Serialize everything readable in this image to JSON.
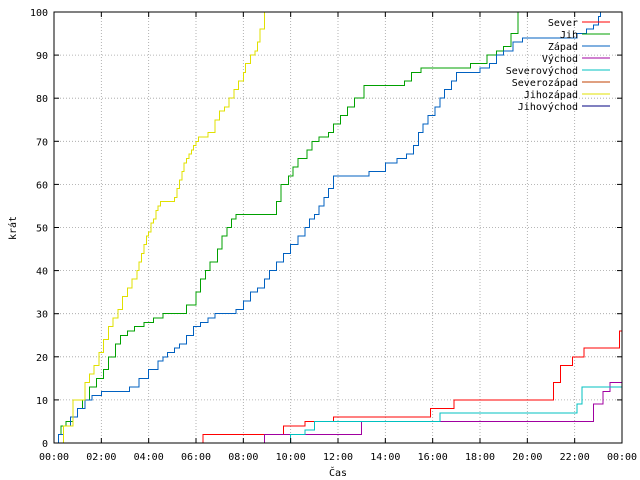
{
  "chart_data": {
    "type": "line",
    "title": "",
    "xlabel": "Čas",
    "ylabel": "krát",
    "xlim": [
      0,
      24
    ],
    "ylim": [
      0,
      100
    ],
    "grid": true,
    "legend_position": "top-right",
    "x_ticks": [
      {
        "value": 0,
        "label": "00:00"
      },
      {
        "value": 2,
        "label": "02:00"
      },
      {
        "value": 4,
        "label": "04:00"
      },
      {
        "value": 6,
        "label": "06:00"
      },
      {
        "value": 8,
        "label": "08:00"
      },
      {
        "value": 10,
        "label": "10:00"
      },
      {
        "value": 12,
        "label": "12:00"
      },
      {
        "value": 14,
        "label": "14:00"
      },
      {
        "value": 16,
        "label": "16:00"
      },
      {
        "value": 18,
        "label": "18:00"
      },
      {
        "value": 20,
        "label": "20:00"
      },
      {
        "value": 22,
        "label": "22:00"
      },
      {
        "value": 24,
        "label": "00:00"
      }
    ],
    "y_ticks": [
      0,
      10,
      20,
      30,
      40,
      50,
      60,
      70,
      80,
      90,
      100
    ],
    "series": [
      {
        "name": "Sever",
        "color": "#ff0000",
        "step": true,
        "x": [
          0,
          6.3,
          9.7,
          10.6,
          11.8,
          15.9,
          16.9,
          21.1,
          21.4,
          21.9,
          22.4,
          23.9
        ],
        "y": [
          0,
          2,
          4,
          5,
          6,
          8,
          10,
          14,
          18,
          20,
          22,
          26
        ]
      },
      {
        "name": "Jih",
        "color": "#00a000",
        "step": true,
        "x": [
          0,
          0.2,
          0.3,
          0.5,
          0.8,
          1.0,
          1.2,
          1.5,
          1.8,
          2.1,
          2.3,
          2.6,
          2.8,
          3.1,
          3.4,
          3.8,
          4.2,
          4.6,
          5.0,
          5.6,
          6.0,
          6.2,
          6.4,
          6.6,
          6.9,
          7.1,
          7.3,
          7.5,
          7.7,
          8.0,
          8.3,
          9.4,
          9.6,
          9.9,
          10.1,
          10.3,
          10.7,
          10.9,
          11.2,
          11.6,
          11.8,
          12.1,
          12.4,
          12.7,
          13.1,
          14.4,
          14.8,
          15.1,
          15.5,
          16.0,
          16.8,
          17.2,
          17.6,
          18.3,
          18.7,
          19.0,
          19.3,
          19.6
        ],
        "y": [
          0,
          2,
          4,
          5,
          6,
          8,
          10,
          13,
          15,
          17,
          20,
          23,
          25,
          26,
          27,
          28,
          29,
          30,
          30,
          32,
          35,
          38,
          40,
          42,
          45,
          48,
          50,
          52,
          53,
          53,
          53,
          56,
          60,
          62,
          64,
          66,
          68,
          70,
          71,
          72,
          74,
          76,
          78,
          80,
          83,
          83,
          84,
          86,
          87,
          87,
          87,
          87,
          88,
          90,
          91,
          92,
          95,
          100
        ]
      },
      {
        "name": "Západ",
        "color": "#0060c0",
        "step": true,
        "x": [
          0,
          0.2,
          0.4,
          0.7,
          1.0,
          1.3,
          1.6,
          2.0,
          2.4,
          2.8,
          3.2,
          3.6,
          4.0,
          4.4,
          4.6,
          4.8,
          5.1,
          5.3,
          5.6,
          5.9,
          6.2,
          6.5,
          6.8,
          7.4,
          7.7,
          8.0,
          8.3,
          8.6,
          8.9,
          9.1,
          9.4,
          9.7,
          10.0,
          10.3,
          10.6,
          10.8,
          11.0,
          11.2,
          11.4,
          11.6,
          11.8,
          12.1,
          12.4,
          12.8,
          13.3,
          14.0,
          14.5,
          14.9,
          15.2,
          15.4,
          15.6,
          15.8,
          16.1,
          16.3,
          16.5,
          16.8,
          17.0,
          17.2,
          17.6,
          18.0,
          18.4,
          18.7,
          19.0,
          19.4,
          19.8,
          20.3,
          21.0,
          21.6,
          22.1,
          22.5,
          22.8,
          23.0,
          23.1
        ],
        "y": [
          0,
          2,
          4,
          6,
          8,
          10,
          11,
          12,
          12,
          12,
          13,
          15,
          17,
          19,
          20,
          21,
          22,
          23,
          25,
          27,
          28,
          29,
          30,
          30,
          31,
          33,
          35,
          36,
          38,
          40,
          42,
          44,
          46,
          48,
          50,
          52,
          53,
          55,
          57,
          59,
          62,
          62,
          62,
          62,
          63,
          65,
          66,
          67,
          69,
          72,
          74,
          76,
          78,
          80,
          82,
          84,
          86,
          86,
          86,
          87,
          88,
          90,
          91,
          93,
          94,
          94,
          94,
          94,
          95,
          96,
          97,
          99,
          100
        ]
      },
      {
        "name": "Východ",
        "color": "#a000a0",
        "step": true,
        "x": [
          0,
          8.9,
          13.0,
          22.8,
          23.2,
          23.5
        ],
        "y": [
          0,
          2,
          5,
          9,
          12,
          14
        ]
      },
      {
        "name": "Severovýchod",
        "color": "#00c0c0",
        "step": true,
        "x": [
          0,
          10.0,
          10.6,
          11.0,
          13.4,
          16.3,
          22.1,
          22.3,
          23.9,
          24.0
        ],
        "y": [
          0,
          2,
          3,
          5,
          5,
          7,
          9,
          13,
          13,
          18
        ]
      },
      {
        "name": "Severozápad",
        "color": "#c04000",
        "step": true,
        "x": [],
        "y": []
      },
      {
        "name": "Jihozápad",
        "color": "#e0e000",
        "step": true,
        "x": [
          0,
          0.4,
          0.8,
          1.3,
          1.5,
          1.7,
          1.9,
          2.1,
          2.3,
          2.5,
          2.7,
          2.9,
          3.1,
          3.3,
          3.5,
          3.6,
          3.7,
          3.8,
          3.9,
          4.0,
          4.1,
          4.2,
          4.3,
          4.4,
          4.5,
          5.0,
          5.1,
          5.2,
          5.3,
          5.4,
          5.5,
          5.6,
          5.7,
          5.8,
          5.9,
          6.0,
          6.1,
          6.3,
          6.5,
          6.8,
          7.0,
          7.2,
          7.4,
          7.6,
          7.8,
          8.0,
          8.1,
          8.3,
          8.5,
          8.6,
          8.7,
          8.9
        ],
        "y": [
          0,
          4,
          10,
          14,
          16,
          18,
          21,
          24,
          27,
          29,
          31,
          34,
          36,
          38,
          40,
          42,
          44,
          46,
          48,
          49,
          51,
          52,
          54,
          55,
          56,
          56,
          57,
          59,
          61,
          63,
          65,
          66,
          67,
          68,
          69,
          70,
          71,
          71,
          72,
          75,
          77,
          78,
          80,
          82,
          84,
          86,
          88,
          90,
          91,
          93,
          96,
          100
        ]
      },
      {
        "name": "Jihovýchod",
        "color": "#000080",
        "step": true,
        "x": [],
        "y": []
      }
    ]
  }
}
